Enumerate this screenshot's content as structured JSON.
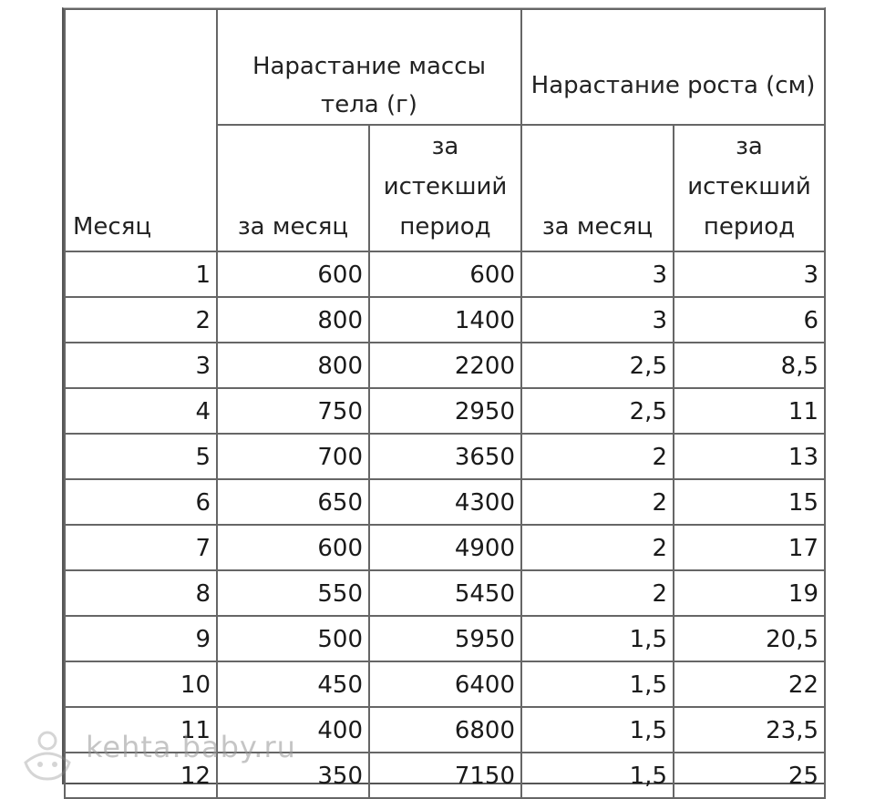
{
  "table": {
    "header": {
      "month_label": "Месяц",
      "mass_group": "Нарастание массы тела (г)",
      "height_group": "Нарастание роста (см)",
      "per_month": "за месяц",
      "cumulative": "за истекший период"
    },
    "rows": [
      {
        "month": "1",
        "mass_month": "600",
        "mass_total": "600",
        "height_month": "3",
        "height_total": "3"
      },
      {
        "month": "2",
        "mass_month": "800",
        "mass_total": "1400",
        "height_month": "3",
        "height_total": "6"
      },
      {
        "month": "3",
        "mass_month": "800",
        "mass_total": "2200",
        "height_month": "2,5",
        "height_total": "8,5"
      },
      {
        "month": "4",
        "mass_month": "750",
        "mass_total": "2950",
        "height_month": "2,5",
        "height_total": "11"
      },
      {
        "month": "5",
        "mass_month": "700",
        "mass_total": "3650",
        "height_month": "2",
        "height_total": "13"
      },
      {
        "month": "6",
        "mass_month": "650",
        "mass_total": "4300",
        "height_month": "2",
        "height_total": "15"
      },
      {
        "month": "7",
        "mass_month": "600",
        "mass_total": "4900",
        "height_month": "2",
        "height_total": "17"
      },
      {
        "month": "8",
        "mass_month": "550",
        "mass_total": "5450",
        "height_month": "2",
        "height_total": "19"
      },
      {
        "month": "9",
        "mass_month": "500",
        "mass_total": "5950",
        "height_month": "1,5",
        "height_total": "20,5"
      },
      {
        "month": "10",
        "mass_month": "450",
        "mass_total": "6400",
        "height_month": "1,5",
        "height_total": "22"
      },
      {
        "month": "11",
        "mass_month": "400",
        "mass_total": "6800",
        "height_month": "1,5",
        "height_total": "23,5"
      },
      {
        "month": "12",
        "mass_month": "350",
        "mass_total": "7150",
        "height_month": "1,5",
        "height_total": "25"
      }
    ]
  },
  "watermark": {
    "text": "kehta.baby.ru",
    "icon": "baby-logo-icon",
    "color": "#969696"
  }
}
